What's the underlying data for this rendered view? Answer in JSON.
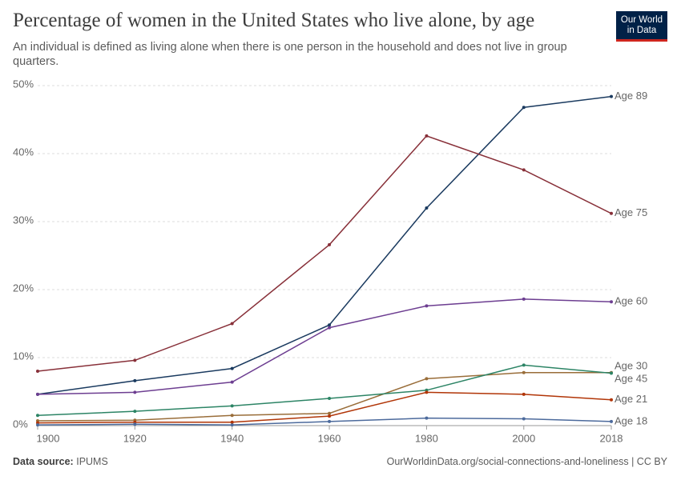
{
  "chart_data": {
    "type": "line",
    "title": "Percentage of women in the United States who live alone, by age",
    "subtitle": "An individual is defined as living alone when there is one person in the household and does not live in group quarters.",
    "logo": [
      "Our World",
      "in Data"
    ],
    "source_label": "Data source:",
    "source": "IPUMS",
    "credit": "OurWorldinData.org/social-connections-and-loneliness | CC BY",
    "x": [
      1900,
      1920,
      1940,
      1960,
      1980,
      2000,
      2018
    ],
    "xlim": [
      1900,
      2018
    ],
    "xticks": [
      1900,
      1920,
      1940,
      1960,
      1980,
      2000,
      2018
    ],
    "ylim": [
      0,
      50
    ],
    "yticks": [
      {
        "value": 0,
        "label": "0%"
      },
      {
        "value": 10,
        "label": "10%"
      },
      {
        "value": 20,
        "label": "20%"
      },
      {
        "value": 30,
        "label": "30%"
      },
      {
        "value": 40,
        "label": "40%"
      },
      {
        "value": 50,
        "label": "50%"
      }
    ],
    "grid": true,
    "series": [
      {
        "name": "Age 89",
        "color": "#1a3a5f",
        "values": [
          4.6,
          6.6,
          8.4,
          14.8,
          32.0,
          46.8,
          48.4
        ]
      },
      {
        "name": "Age 75",
        "color": "#883039",
        "values": [
          8.0,
          9.6,
          15.0,
          26.6,
          42.6,
          37.6,
          31.2
        ]
      },
      {
        "name": "Age 60",
        "color": "#6d3e91",
        "values": [
          4.6,
          4.9,
          6.4,
          14.4,
          17.6,
          18.6,
          18.2
        ]
      },
      {
        "name": "Age 30",
        "color": "#996d39",
        "values": [
          0.7,
          0.8,
          1.5,
          1.8,
          6.9,
          7.8,
          7.8
        ]
      },
      {
        "name": "Age 45",
        "color": "#2c8465",
        "values": [
          1.5,
          2.1,
          2.9,
          4.0,
          5.2,
          8.9,
          7.7
        ]
      },
      {
        "name": "Age 21",
        "color": "#b13507",
        "values": [
          0.4,
          0.5,
          0.5,
          1.4,
          4.9,
          4.6,
          3.8
        ]
      },
      {
        "name": "Age 18",
        "color": "#4c6a9c",
        "values": [
          0.1,
          0.2,
          0.1,
          0.6,
          1.1,
          1.0,
          0.6
        ]
      }
    ]
  }
}
